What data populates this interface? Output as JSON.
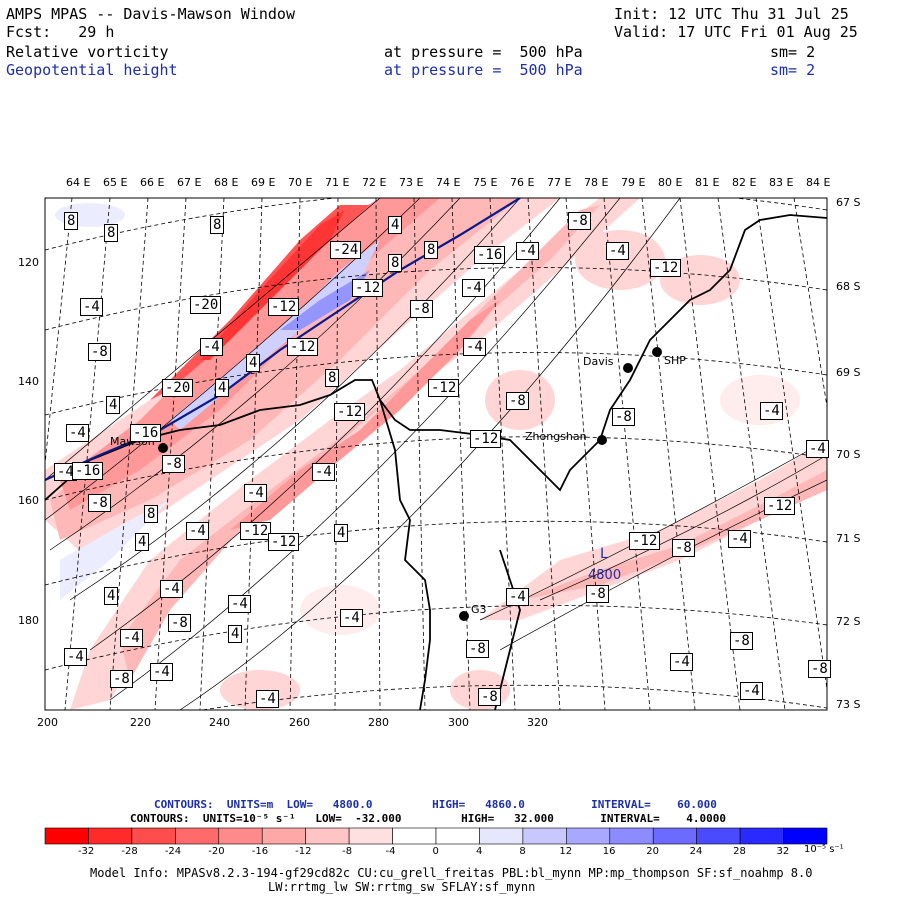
{
  "header": {
    "title": "AMPS MPAS -- Davis-Mawson Window",
    "forecast": "Fcst:   29 h",
    "init": "Init: 12 UTC Thu 31 Jul 25",
    "valid": "Valid: 17 UTC Fri 01 Aug 25",
    "fields": [
      {
        "name": "Relative vorticity",
        "level": "at pressure =  500 hPa",
        "sm": "sm= 2"
      },
      {
        "name": "Geopotential height",
        "level": "at pressure =  500 hPa",
        "sm": "sm= 2"
      }
    ]
  },
  "axes": {
    "top_lon": [
      "64 E",
      "65 E",
      "66 E",
      "67 E",
      "68 E",
      "69 E",
      "70 E",
      "71 E",
      "72 E",
      "73 E",
      "74 E",
      "75 E",
      "76 E",
      "77 E",
      "78 E",
      "79 E",
      "80 E",
      "81 E",
      "82 E",
      "83 E",
      "84 E"
    ],
    "right_lat": [
      "67 S",
      "68 S",
      "69 S",
      "70 S",
      "71 S",
      "72 S",
      "73 S"
    ],
    "bottom_x": [
      "200",
      "220",
      "240",
      "260",
      "280",
      "300",
      "320"
    ],
    "left_y": [
      "120",
      "140",
      "160",
      "180"
    ]
  },
  "stations": [
    {
      "name": "Davis"
    },
    {
      "name": "Mawson"
    },
    {
      "name": "Zhongshan"
    },
    {
      "name": "G3"
    },
    {
      "name": "SHP"
    }
  ],
  "contour_labels": [
    "8",
    "8",
    "8",
    "4",
    "-24",
    "8",
    "8",
    "-16",
    "-4",
    "-8",
    "-4",
    "-12",
    "-4",
    "-20",
    "-12",
    "-12",
    "-8",
    "-4",
    "-4",
    "-8",
    "-4",
    "-12",
    "4",
    "8",
    "-12",
    "4",
    "-20",
    "-8",
    "4",
    "-12",
    "-16",
    "-8",
    "-4",
    "-4",
    "-12",
    "-4",
    "-8",
    "-4",
    "-4",
    "-8",
    "-16",
    "4",
    "-4",
    "-4",
    "-12",
    "-12",
    "8",
    "4",
    "-12",
    "-8",
    "-12",
    "-4",
    "4",
    "-8",
    "-4",
    "-8",
    "-4",
    "4",
    "-4",
    "-4",
    "-4",
    "-8",
    "-4",
    "-4",
    "-8",
    "-4",
    "-8",
    "-8",
    "-4",
    "-4",
    "-8"
  ],
  "low_marker": {
    "symbol": "L",
    "value": "4800"
  },
  "legend": {
    "height_contours": "CONTOURS:  UNITS=m  LOW=   4800.0         HIGH=   4860.0          INTERVAL=    60.000",
    "vort_contours": "CONTOURS:  UNITS=10⁻⁵ s⁻¹   LOW=  -32.000         HIGH=   32.000       INTERVAL=    4.0000",
    "units": "10⁻⁵ s⁻¹",
    "ticks": [
      "-32",
      "-28",
      "-24",
      "-20",
      "-16",
      "-12",
      "-8",
      "-4",
      "0",
      "4",
      "8",
      "12",
      "16",
      "20",
      "24",
      "28",
      "32"
    ],
    "colors": [
      "#ff0000",
      "#ff3535",
      "#ff5555",
      "#ff7575",
      "#ff9999",
      "#ffb8b8",
      "#ffd5d5",
      "#ffecec",
      "#ffffff",
      "#ffffff",
      "#ececff",
      "#d0d0ff",
      "#b4b4ff",
      "#9595ff",
      "#7575ff",
      "#4d4dff",
      "#1010ff"
    ]
  },
  "footer": {
    "line1": "Model Info: MPASv8.2.3-194-gf29cd82c CU:cu_grell_freitas PBL:bl_mynn MP:mp_thompson SF:sf_noahmp 8.0",
    "line2": "LW:rrtmg_lw SW:rrtmg_sw SFLAY:sf_mynn"
  }
}
